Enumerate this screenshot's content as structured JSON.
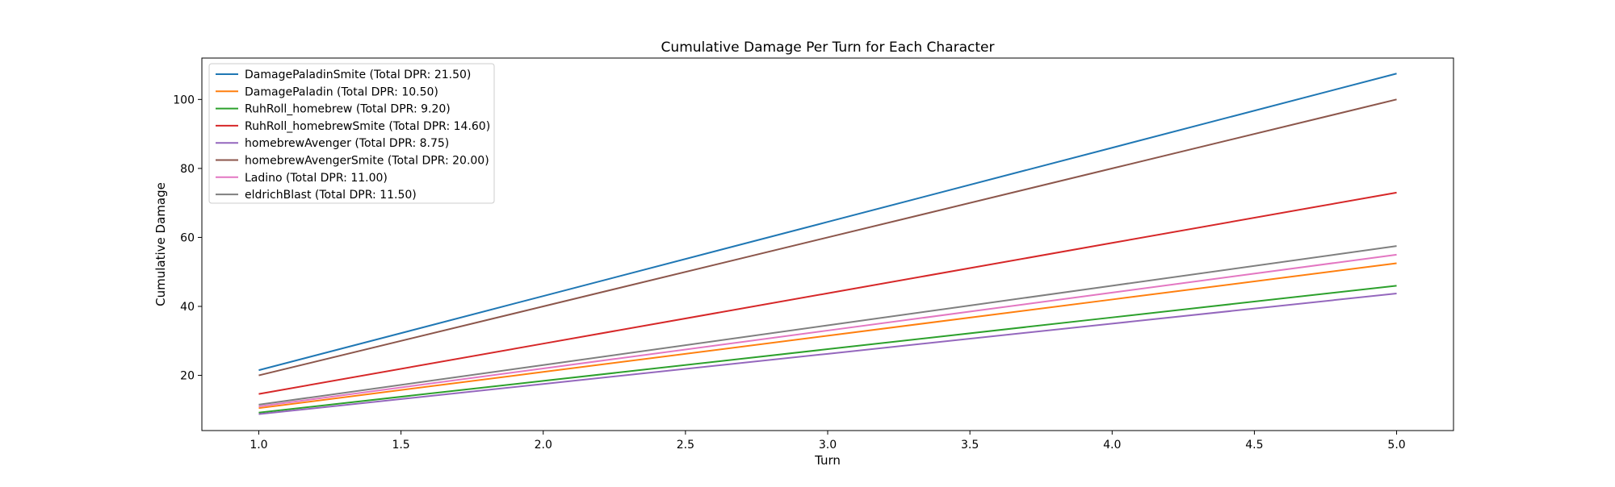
{
  "chart_data": {
    "type": "line",
    "title": "Cumulative Damage Per Turn for Each Character",
    "xlabel": "Turn",
    "ylabel": "Cumulative Damage",
    "xlim": [
      0.8,
      5.2
    ],
    "ylim": [
      4,
      112
    ],
    "xticks": [
      "1.0",
      "1.5",
      "2.0",
      "2.5",
      "3.0",
      "3.5",
      "4.0",
      "4.5",
      "5.0"
    ],
    "yticks": [
      "20",
      "40",
      "60",
      "80",
      "100"
    ],
    "grid": false,
    "legend_position": "upper-left",
    "x": [
      1,
      2,
      3,
      4,
      5
    ],
    "series": [
      {
        "name": "DamagePaladinSmite (Total DPR: 21.50)",
        "color": "#1f77b4",
        "values": [
          21.5,
          43.0,
          64.5,
          86.0,
          107.5
        ]
      },
      {
        "name": "DamagePaladin (Total DPR: 10.50)",
        "color": "#ff7f0e",
        "values": [
          10.5,
          21.0,
          31.5,
          42.0,
          52.5
        ]
      },
      {
        "name": "RuhRoll_homebrew (Total DPR: 9.20)",
        "color": "#2ca02c",
        "values": [
          9.2,
          18.4,
          27.6,
          36.8,
          46.0
        ]
      },
      {
        "name": "RuhRoll_homebrewSmite (Total DPR: 14.60)",
        "color": "#d62728",
        "values": [
          14.6,
          29.2,
          43.8,
          58.4,
          73.0
        ]
      },
      {
        "name": "homebrewAvenger (Total DPR: 8.75)",
        "color": "#9467bd",
        "values": [
          8.75,
          17.5,
          26.25,
          35.0,
          43.75
        ]
      },
      {
        "name": "homebrewAvengerSmite (Total DPR: 20.00)",
        "color": "#8c564b",
        "values": [
          20.0,
          40.0,
          60.0,
          80.0,
          100.0
        ]
      },
      {
        "name": "Ladino (Total DPR: 11.00)",
        "color": "#e377c2",
        "values": [
          11.0,
          22.0,
          33.0,
          44.0,
          55.0
        ]
      },
      {
        "name": "eldrichBlast (Total DPR: 11.50)",
        "color": "#7f7f7f",
        "values": [
          11.5,
          23.0,
          34.5,
          46.0,
          57.5
        ]
      }
    ]
  }
}
